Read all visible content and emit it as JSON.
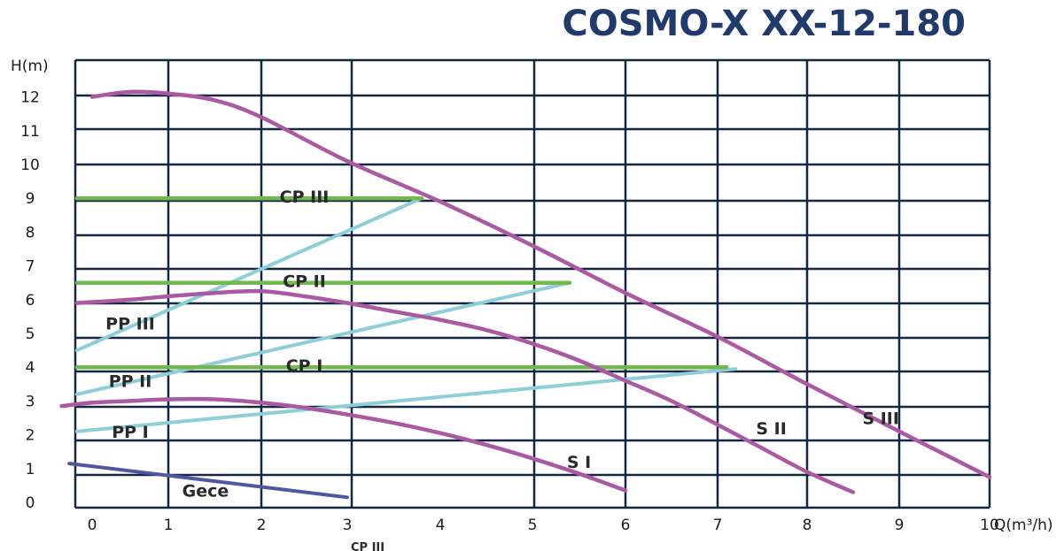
{
  "chart_data": {
    "type": "line",
    "title": "COSMO-X XX-12-180",
    "xlabel": "Q(m³/h)",
    "ylabel": "H(m)",
    "xlim": [
      0,
      10
    ],
    "ylim": [
      0,
      12.5
    ],
    "x_ticks": [
      "0",
      "1",
      "2",
      "3",
      "4",
      "5",
      "6",
      "7",
      "8",
      "9",
      "10"
    ],
    "y_ticks": [
      "0",
      "1",
      "2",
      "3",
      "4",
      "5",
      "6",
      "7",
      "8",
      "9",
      "10",
      "11",
      "12"
    ],
    "grid": true,
    "colors": {
      "grid": "#15273f",
      "speed_curves": "#a95aa3",
      "proportional": "#8ccfd8",
      "constant": "#72b84f",
      "night": "#4f57a3"
    },
    "series": [
      {
        "name": "S III",
        "group": "speed",
        "x": [
          0,
          0.5,
          1,
          1.5,
          2,
          3,
          4,
          5,
          6,
          7,
          8,
          9,
          10
        ],
        "y": [
          12.0,
          12.15,
          12.1,
          11.9,
          11.4,
          10.1,
          8.9,
          7.6,
          6.2,
          4.9,
          3.5,
          2.1,
          0.75
        ]
      },
      {
        "name": "S II",
        "group": "speed",
        "x": [
          -0.2,
          0.5,
          1,
          1.5,
          2,
          2.5,
          3,
          3.5,
          4,
          4.5,
          5,
          5.5,
          6,
          6.5,
          7,
          7.5,
          8,
          8.5
        ],
        "y": [
          5.9,
          6.0,
          6.1,
          6.2,
          6.25,
          6.1,
          5.9,
          5.65,
          5.4,
          5.1,
          4.7,
          4.2,
          3.6,
          3.0,
          2.3,
          1.6,
          0.9,
          0.3
        ]
      },
      {
        "name": "S I",
        "group": "speed",
        "x": [
          -0.4,
          0,
          0.5,
          1,
          1.5,
          2,
          2.5,
          3,
          3.5,
          4,
          4.5,
          5,
          5.5,
          6
        ],
        "y": [
          2.85,
          2.95,
          3.0,
          3.05,
          3.05,
          2.95,
          2.8,
          2.6,
          2.35,
          2.05,
          1.7,
          1.3,
          0.85,
          0.35
        ]
      },
      {
        "name": "PP III",
        "group": "proportional",
        "x": [
          -0.2,
          3.8
        ],
        "y": [
          4.5,
          9.0
        ]
      },
      {
        "name": "PP II",
        "group": "proportional",
        "x": [
          -0.2,
          5.4
        ],
        "y": [
          3.2,
          6.5
        ]
      },
      {
        "name": "PP I",
        "group": "proportional",
        "x": [
          -0.2,
          7.2
        ],
        "y": [
          2.1,
          3.95
        ]
      },
      {
        "name": "CP III",
        "group": "constant",
        "x": [
          -0.2,
          3.8
        ],
        "y": [
          9.0,
          9.0
        ]
      },
      {
        "name": "CP II",
        "group": "constant",
        "x": [
          -0.2,
          5.4
        ],
        "y": [
          6.5,
          6.5
        ]
      },
      {
        "name": "CP I",
        "group": "constant",
        "x": [
          -0.2,
          7.1
        ],
        "y": [
          4.0,
          4.0
        ]
      },
      {
        "name": "Gece",
        "group": "night",
        "x": [
          -0.3,
          3.0
        ],
        "y": [
          1.15,
          0.15
        ]
      }
    ],
    "annotations": [
      {
        "text": "CP III",
        "x": 2.5,
        "y": 9.0
      },
      {
        "text": "CP II",
        "x": 2.5,
        "y": 6.5
      },
      {
        "text": "CP I",
        "x": 2.5,
        "y": 4.0
      },
      {
        "text": "PP III",
        "x": 0.5,
        "y": 5.3
      },
      {
        "text": "PP II",
        "x": 0.5,
        "y": 3.6
      },
      {
        "text": "PP I",
        "x": 0.5,
        "y": 2.1
      },
      {
        "text": "S I",
        "x": 5.5,
        "y": 1.2
      },
      {
        "text": "S II",
        "x": 7.6,
        "y": 2.2
      },
      {
        "text": "S III",
        "x": 8.8,
        "y": 2.5
      },
      {
        "text": "Gece",
        "x": 1.4,
        "y": 0.35
      }
    ],
    "cropped_label": "CP III"
  }
}
